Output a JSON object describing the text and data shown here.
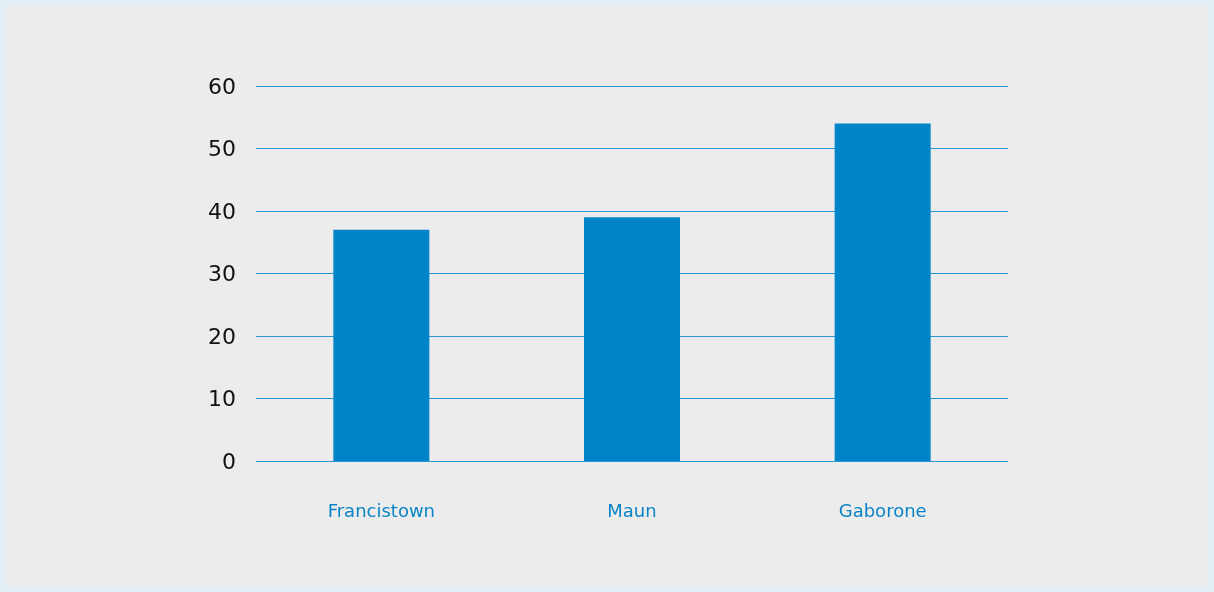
{
  "chart_data": {
    "type": "bar",
    "categories": [
      "Francistown",
      "Maun",
      "Gaborone"
    ],
    "values": [
      37,
      39,
      54
    ],
    "color": "#0084c9",
    "ylim": [
      0,
      60
    ],
    "yticks": [
      0,
      10,
      20,
      30,
      40,
      50,
      60
    ],
    "grid": "y"
  }
}
